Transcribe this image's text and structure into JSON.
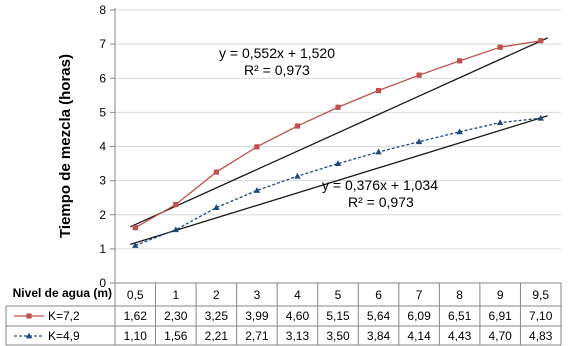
{
  "chart_data": {
    "type": "line",
    "ylabel": "Tiempo de mezcla (horas)",
    "xlabel": "Nivel de agua (m)",
    "ylim": [
      0,
      8
    ],
    "yticks": [
      0,
      1,
      2,
      3,
      4,
      5,
      6,
      7,
      8
    ],
    "grid": "horizontal",
    "legend_placement": "table-left",
    "x": [
      0.5,
      1,
      2,
      3,
      4,
      5,
      6,
      7,
      8,
      9,
      9.5
    ],
    "categories": [
      "0,5",
      "1",
      "2",
      "3",
      "4",
      "5",
      "6",
      "7",
      "8",
      "9",
      "9,5"
    ],
    "series": [
      {
        "name": "K=7,2",
        "color": "#c0504d",
        "marker": "square",
        "line_style": "solid",
        "values": [
          1.62,
          2.3,
          3.25,
          3.99,
          4.6,
          5.15,
          5.64,
          6.09,
          6.51,
          6.91,
          7.1
        ],
        "labels": [
          "1,62",
          "2,30",
          "3,25",
          "3,99",
          "4,60",
          "5,15",
          "5,64",
          "6,09",
          "6,51",
          "6,91",
          "7,10"
        ],
        "trendline": {
          "slope": 0.552,
          "intercept": 1.52,
          "equation": "y = 0,552x + 1,520",
          "r2": "R² = 0,973"
        }
      },
      {
        "name": "K=4,9",
        "color": "#1f497d",
        "marker": "triangle",
        "line_style": "dashed",
        "values": [
          1.1,
          1.56,
          2.21,
          2.71,
          3.13,
          3.5,
          3.84,
          4.14,
          4.43,
          4.7,
          4.83
        ],
        "labels": [
          "1,10",
          "1,56",
          "2,21",
          "2,71",
          "3,13",
          "3,50",
          "3,84",
          "4,14",
          "4,43",
          "4,70",
          "4,83"
        ],
        "trendline": {
          "slope": 0.376,
          "intercept": 1.034,
          "equation": "y = 0,376x + 1,034",
          "r2": "R² = 0,973"
        }
      }
    ]
  }
}
